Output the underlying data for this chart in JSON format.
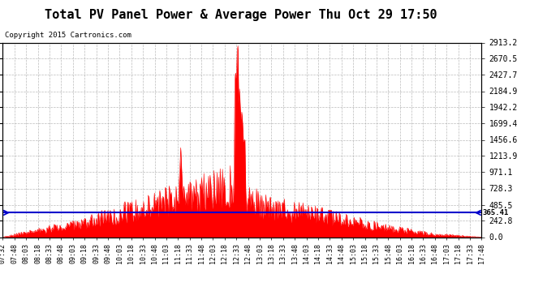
{
  "title": "Total PV Panel Power & Average Power Thu Oct 29 17:50",
  "copyright": "Copyright 2015 Cartronics.com",
  "average_value": 365.41,
  "y_max": 2913.2,
  "y_ticks": [
    0.0,
    242.8,
    485.5,
    728.3,
    971.1,
    1213.9,
    1456.6,
    1699.4,
    1942.2,
    2184.9,
    2427.7,
    2670.5,
    2913.2
  ],
  "background_color": "#ffffff",
  "plot_bg_color": "#ffffff",
  "grid_color": "#aaaaaa",
  "pv_color": "#ff0000",
  "avg_color": "#0000cc",
  "title_color": "#000000",
  "title_fontsize": 11,
  "legend_avg_bg": "#0000cc",
  "legend_pv_bg": "#ff0000",
  "x_tick_labels": [
    "07:32",
    "07:48",
    "08:03",
    "08:18",
    "08:33",
    "08:48",
    "09:03",
    "09:18",
    "09:33",
    "09:48",
    "10:03",
    "10:18",
    "10:33",
    "10:48",
    "11:03",
    "11:18",
    "11:33",
    "11:48",
    "12:03",
    "12:18",
    "12:33",
    "12:48",
    "13:03",
    "13:18",
    "13:33",
    "13:48",
    "14:03",
    "14:18",
    "14:33",
    "14:48",
    "15:03",
    "15:18",
    "15:33",
    "15:48",
    "16:03",
    "16:18",
    "16:33",
    "16:48",
    "17:03",
    "17:18",
    "17:33",
    "17:48"
  ],
  "num_points": 620
}
